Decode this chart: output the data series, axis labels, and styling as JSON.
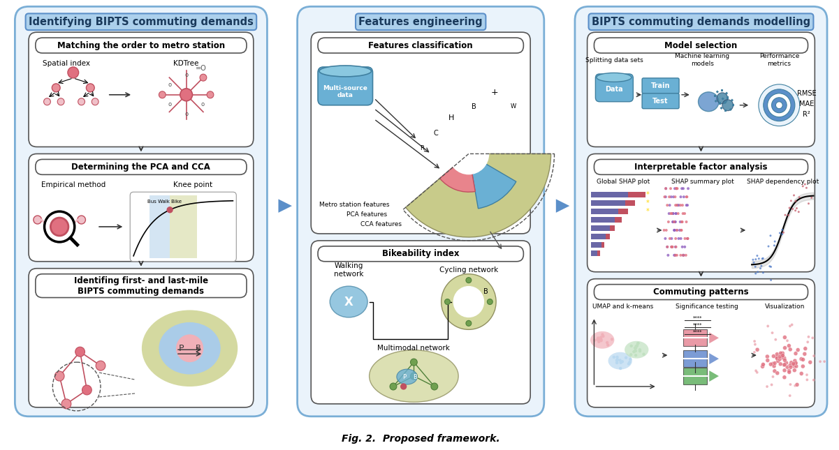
{
  "title": "Fig. 2.  Proposed framework.",
  "background_color": "#ffffff",
  "panel1_title": "Identifying BIPTS commuting demands",
  "panel2_title": "Features engineering",
  "panel3_title": "BIPTS commuting demands modelling",
  "panel_border": "#7aaed6",
  "metrics": [
    "RMSE",
    "MAE",
    "R²"
  ],
  "pink_color": "#e8748a",
  "red_color": "#c94060",
  "blue_color": "#4472c4",
  "light_blue": "#aacce8",
  "olive_color": "#b5b87a",
  "light_olive": "#d4d9a0",
  "pink_light": "#f0b0b8"
}
